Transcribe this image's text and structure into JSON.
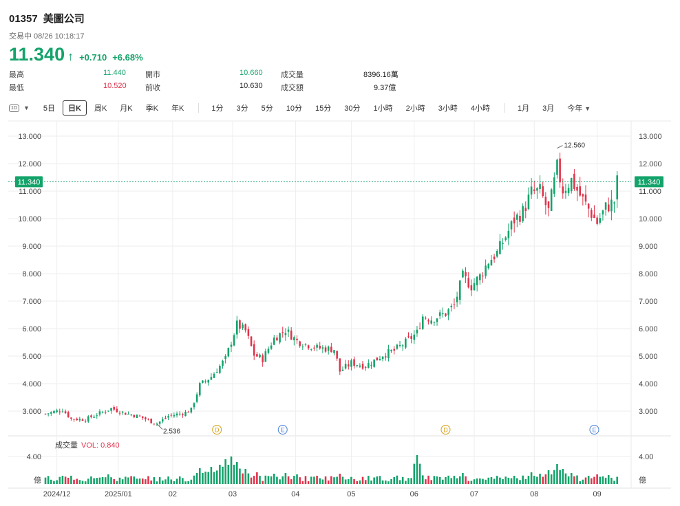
{
  "header": {
    "code": "01357",
    "name": "美圖公司",
    "status": "交易中 08/26 10:18:17",
    "price": "11.340",
    "change": "+0.710",
    "change_pct": "+6.68%"
  },
  "stats": [
    {
      "label": "最高",
      "value": "11.440",
      "tone": "up"
    },
    {
      "label": "開市",
      "value": "10.660",
      "tone": "up"
    },
    {
      "label": "成交量",
      "value": "8396.16萬",
      "tone": "neutral"
    },
    {
      "label": "最低",
      "value": "10.520",
      "tone": "down"
    },
    {
      "label": "前收",
      "value": "10.630",
      "tone": "neutral"
    },
    {
      "label": "成交額",
      "value": "9.37億",
      "tone": "neutral"
    }
  ],
  "toolbar": {
    "icon_label": "1D",
    "periods": [
      "5日",
      "日K",
      "周K",
      "月K",
      "季K",
      "年K"
    ],
    "active_period": "日K",
    "intraday": [
      "1分",
      "3分",
      "5分",
      "10分",
      "15分",
      "30分",
      "1小時",
      "2小時",
      "3小時",
      "4小時"
    ],
    "ranges": [
      "1月",
      "3月"
    ],
    "range_select": "今年"
  },
  "colors": {
    "up": "#14a36a",
    "down": "#e0334b",
    "grid": "#eeeeee",
    "event": "#d4a017",
    "event_e": "#4a7fd4"
  },
  "chart_data": {
    "type": "candlestick",
    "y_ticks": [
      "13.000",
      "12.000",
      "11.000",
      "10.000",
      "9.000",
      "8.000",
      "7.000",
      "6.000",
      "5.000",
      "4.000",
      "3.000"
    ],
    "ylim": [
      2.15,
      13.35
    ],
    "x_labels": [
      "2024/12",
      "2025/01",
      "02",
      "03",
      "04",
      "05",
      "06",
      "07",
      "08",
      "09"
    ],
    "x_label_pos": [
      4,
      25.5,
      44.5,
      65.5,
      87.5,
      107,
      129,
      150,
      171,
      193
    ],
    "x_max": 202,
    "current_price": "11.340",
    "high_annotation": {
      "label": "12.560",
      "x": 179,
      "y": 12.56
    },
    "low_annotation": {
      "label": "2.536",
      "x": 39,
      "y": 2.536
    },
    "events": [
      {
        "label": "D",
        "x": 60
      },
      {
        "label": "E",
        "x": 83
      },
      {
        "label": "D",
        "x": 140
      },
      {
        "label": "E",
        "x": 192
      }
    ],
    "trend": [
      [
        0,
        2.9
      ],
      [
        6,
        3.05
      ],
      [
        9,
        2.72
      ],
      [
        14,
        2.7
      ],
      [
        18,
        2.88
      ],
      [
        23,
        3.1
      ],
      [
        28,
        2.92
      ],
      [
        33,
        2.8
      ],
      [
        37,
        2.62
      ],
      [
        39,
        2.55
      ],
      [
        43,
        2.82
      ],
      [
        49,
        2.95
      ],
      [
        51,
        3.05
      ],
      [
        54,
        3.95
      ],
      [
        58,
        4.25
      ],
      [
        63,
        4.9
      ],
      [
        67,
        6.15
      ],
      [
        70,
        5.92
      ],
      [
        73,
        5.05
      ],
      [
        76,
        4.9
      ],
      [
        80,
        5.65
      ],
      [
        84,
        5.95
      ],
      [
        88,
        5.55
      ],
      [
        95,
        5.3
      ],
      [
        101,
        5.25
      ],
      [
        103,
        4.45
      ],
      [
        107,
        4.75
      ],
      [
        112,
        4.65
      ],
      [
        116,
        4.9
      ],
      [
        118,
        5.05
      ],
      [
        122,
        5.2
      ],
      [
        126,
        5.5
      ],
      [
        130,
        5.85
      ],
      [
        132,
        6.45
      ],
      [
        135,
        6.35
      ],
      [
        140,
        6.55
      ],
      [
        143,
        6.85
      ],
      [
        146,
        7.9
      ],
      [
        149,
        7.55
      ],
      [
        152,
        7.9
      ],
      [
        155,
        8.45
      ],
      [
        158,
        8.75
      ],
      [
        161,
        9.35
      ],
      [
        164,
        9.95
      ],
      [
        167,
        10.25
      ],
      [
        170,
        10.95
      ],
      [
        173,
        11.0
      ],
      [
        176,
        10.25
      ],
      [
        179,
        11.85
      ],
      [
        181,
        11.05
      ],
      [
        184,
        11.4
      ],
      [
        187,
        10.85
      ],
      [
        190,
        10.35
      ],
      [
        193,
        9.85
      ],
      [
        196,
        10.4
      ],
      [
        199,
        10.63
      ],
      [
        200,
        11.34
      ]
    ],
    "volume": {
      "label": "成交量",
      "vol_label": "VOL: 0.840",
      "y_ticks": [
        "4.00"
      ],
      "unit": "億",
      "ylim": [
        0,
        5.2
      ],
      "spikes": [
        [
          6,
          1.2
        ],
        [
          9,
          0.6
        ],
        [
          16,
          1.1
        ],
        [
          22,
          1.4
        ],
        [
          33,
          0.8
        ],
        [
          40,
          0.5
        ],
        [
          54,
          2.3
        ],
        [
          56,
          1.8
        ],
        [
          58,
          2.5
        ],
        [
          61,
          2.8
        ],
        [
          63,
          3.6
        ],
        [
          65,
          4.0
        ],
        [
          67,
          3.2
        ],
        [
          70,
          2.2
        ],
        [
          74,
          1.7
        ],
        [
          80,
          1.5
        ],
        [
          84,
          1.6
        ],
        [
          88,
          1.4
        ],
        [
          95,
          1.2
        ],
        [
          103,
          1.5
        ],
        [
          107,
          1.0
        ],
        [
          116,
          1.1
        ],
        [
          122,
          1.0
        ],
        [
          130,
          4.2
        ],
        [
          131,
          1.8
        ],
        [
          143,
          1.2
        ],
        [
          146,
          1.6
        ],
        [
          158,
          1.0
        ],
        [
          164,
          1.2
        ],
        [
          170,
          1.7
        ],
        [
          173,
          1.5
        ],
        [
          176,
          2.0
        ],
        [
          179,
          2.9
        ],
        [
          181,
          2.2
        ],
        [
          184,
          1.6
        ],
        [
          190,
          1.2
        ],
        [
          193,
          1.4
        ],
        [
          197,
          1.3
        ]
      ]
    }
  }
}
